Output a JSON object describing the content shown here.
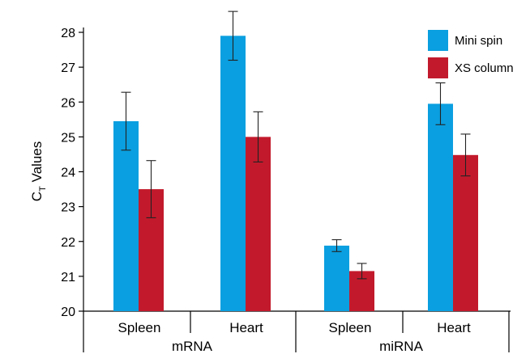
{
  "chart_data": {
    "type": "bar",
    "ylabel_main": "C",
    "ylabel_sub": "T",
    "ylabel_rest": " Values",
    "ylim": [
      20,
      28
    ],
    "yticks": [
      "20",
      "21",
      "22",
      "23",
      "24",
      "25",
      "26",
      "27",
      "28"
    ],
    "categories": [
      "Spleen",
      "Heart",
      "Spleen",
      "Heart"
    ],
    "groups": [
      {
        "label": "mRNA",
        "categories": [
          0,
          1
        ]
      },
      {
        "label": "miRNA",
        "categories": [
          2,
          3
        ]
      }
    ],
    "series": [
      {
        "name": "Mini spin",
        "color": "#0a9fe0",
        "values": [
          25.45,
          27.9,
          21.88,
          25.95
        ],
        "errors": [
          0.83,
          0.7,
          0.17,
          0.6
        ]
      },
      {
        "name": "XS column",
        "color": "#c21a2c",
        "values": [
          23.5,
          25.0,
          21.15,
          24.48
        ],
        "errors": [
          0.82,
          0.72,
          0.22,
          0.6
        ]
      }
    ],
    "legend_position": "top-right",
    "grid": false
  }
}
